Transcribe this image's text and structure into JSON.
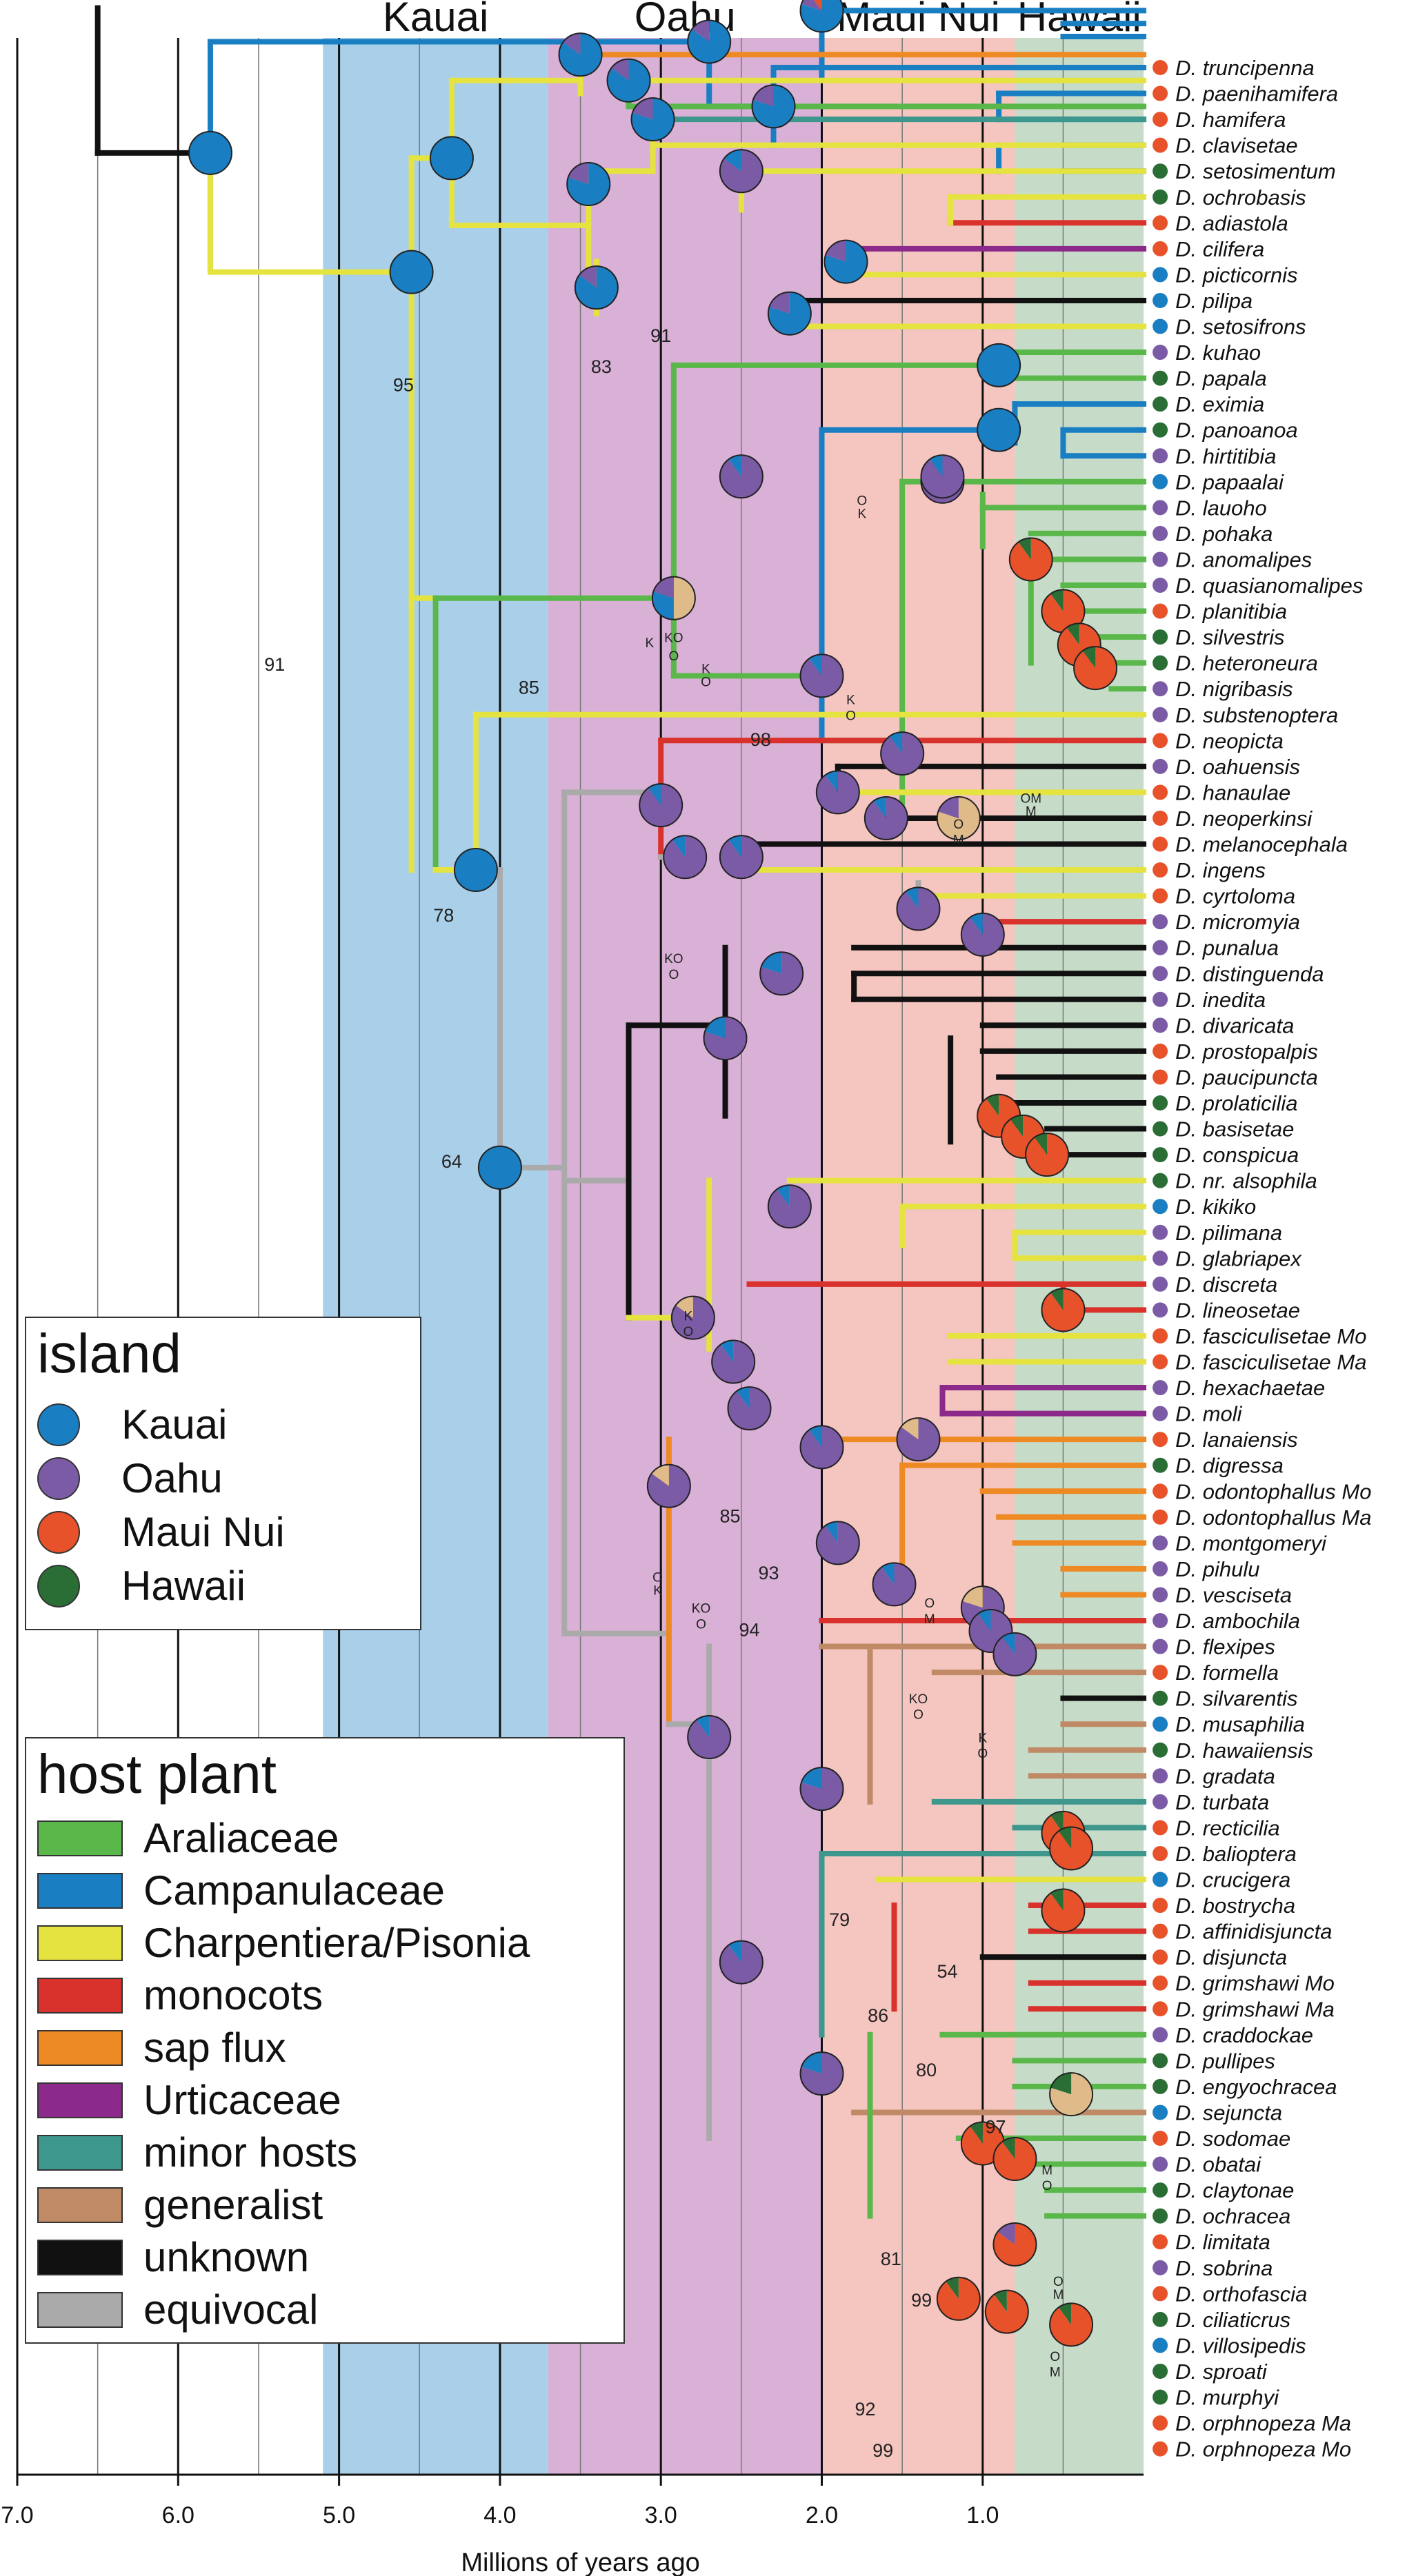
{
  "regions": [
    {
      "label": "Kauai",
      "color": "#a9d0e8",
      "start_ma": 5.1,
      "end_ma": 3.7
    },
    {
      "label": "Oahu",
      "color": "#d9b0d6",
      "start_ma": 3.7,
      "end_ma": 2.0
    },
    {
      "label": "Maui Nui",
      "color": "#f5c5c0",
      "start_ma": 2.0,
      "end_ma": 0.8
    },
    {
      "label": "Hawaii",
      "color": "#c6dcc9",
      "start_ma": 0.8,
      "end_ma": 0.0
    }
  ],
  "axis": {
    "label": "Millions of years ago",
    "ticks": [
      "7.0",
      "6.0",
      "5.0",
      "4.0",
      "3.0",
      "2.0",
      "1.0"
    ],
    "tick_values": [
      7,
      6,
      5,
      4,
      3,
      2,
      1
    ],
    "range": [
      7.0,
      0.0
    ]
  },
  "taxa": [
    {
      "name": "D. truncipenna",
      "island": "Maui Nui"
    },
    {
      "name": "D. paenihamifera",
      "island": "Maui Nui"
    },
    {
      "name": "D. hamifera",
      "island": "Maui Nui"
    },
    {
      "name": "D. clavisetae",
      "island": "Maui Nui"
    },
    {
      "name": "D. setosimentum",
      "island": "Hawaii"
    },
    {
      "name": "D. ochrobasis",
      "island": "Hawaii"
    },
    {
      "name": "D. adiastola",
      "island": "Maui Nui"
    },
    {
      "name": "D. cilifera",
      "island": "Maui Nui"
    },
    {
      "name": "D. picticornis",
      "island": "Kauai"
    },
    {
      "name": "D. pilipa",
      "island": "Kauai"
    },
    {
      "name": "D. setosifrons",
      "island": "Kauai"
    },
    {
      "name": "D. kuhao",
      "island": "Oahu"
    },
    {
      "name": "D. papala",
      "island": "Hawaii"
    },
    {
      "name": "D. eximia",
      "island": "Hawaii"
    },
    {
      "name": "D. panoanoa",
      "island": "Hawaii"
    },
    {
      "name": "D. hirtitibia",
      "island": "Oahu"
    },
    {
      "name": "D. papaalai",
      "island": "Kauai"
    },
    {
      "name": "D. lauoho",
      "island": "Oahu"
    },
    {
      "name": "D. pohaka",
      "island": "Oahu"
    },
    {
      "name": "D. anomalipes",
      "island": "Oahu"
    },
    {
      "name": "D. quasianomalipes",
      "island": "Oahu"
    },
    {
      "name": "D. planitibia",
      "island": "Maui Nui"
    },
    {
      "name": "D. silvestris",
      "island": "Hawaii"
    },
    {
      "name": "D. heteroneura",
      "island": "Hawaii"
    },
    {
      "name": "D. nigribasis",
      "island": "Oahu"
    },
    {
      "name": "D. substenoptera",
      "island": "Oahu"
    },
    {
      "name": "D. neopicta",
      "island": "Maui Nui"
    },
    {
      "name": "D. oahuensis",
      "island": "Oahu"
    },
    {
      "name": "D. hanaulae",
      "island": "Maui Nui"
    },
    {
      "name": "D. neoperkinsi",
      "island": "Maui Nui"
    },
    {
      "name": "D. melanocephala",
      "island": "Maui Nui"
    },
    {
      "name": "D. ingens",
      "island": "Maui Nui"
    },
    {
      "name": "D. cyrtoloma",
      "island": "Maui Nui"
    },
    {
      "name": "D. micromyia",
      "island": "Oahu"
    },
    {
      "name": "D. punalua",
      "island": "Oahu"
    },
    {
      "name": "D. distinguenda",
      "island": "Oahu"
    },
    {
      "name": "D. inedita",
      "island": "Oahu"
    },
    {
      "name": "D. divaricata",
      "island": "Oahu"
    },
    {
      "name": "D. prostopalpis",
      "island": "Maui Nui"
    },
    {
      "name": "D. paucipuncta",
      "island": "Maui Nui"
    },
    {
      "name": "D. prolaticilia",
      "island": "Hawaii"
    },
    {
      "name": "D. basisetae",
      "island": "Hawaii"
    },
    {
      "name": "D. conspicua",
      "island": "Hawaii"
    },
    {
      "name": "D. nr. alsophila",
      "island": "Hawaii"
    },
    {
      "name": "D. kikiko",
      "island": "Kauai"
    },
    {
      "name": "D. pilimana",
      "island": "Oahu"
    },
    {
      "name": "D. glabriapex",
      "island": "Oahu"
    },
    {
      "name": "D. discreta",
      "island": "Oahu"
    },
    {
      "name": "D. lineosetae",
      "island": "Oahu"
    },
    {
      "name": "D. fasciculisetae Mo",
      "island": "Maui Nui"
    },
    {
      "name": "D. fasciculisetae Ma",
      "island": "Maui Nui"
    },
    {
      "name": "D. hexachaetae",
      "island": "Oahu"
    },
    {
      "name": "D. moli",
      "island": "Oahu"
    },
    {
      "name": "D. lanaiensis",
      "island": "Maui Nui"
    },
    {
      "name": "D. digressa",
      "island": "Hawaii"
    },
    {
      "name": "D. odontophallus Mo",
      "island": "Maui Nui"
    },
    {
      "name": "D. odontophallus Ma",
      "island": "Maui Nui"
    },
    {
      "name": "D. montgomeryi",
      "island": "Oahu"
    },
    {
      "name": "D. pihulu",
      "island": "Oahu"
    },
    {
      "name": "D. vesciseta",
      "island": "Oahu"
    },
    {
      "name": "D. ambochila",
      "island": "Oahu"
    },
    {
      "name": "D. flexipes",
      "island": "Oahu"
    },
    {
      "name": "D. formella",
      "island": "Maui Nui"
    },
    {
      "name": "D. silvarentis",
      "island": "Hawaii"
    },
    {
      "name": "D. musaphilia",
      "island": "Kauai"
    },
    {
      "name": "D. hawaiiensis",
      "island": "Hawaii"
    },
    {
      "name": "D. gradata",
      "island": "Oahu"
    },
    {
      "name": "D. turbata",
      "island": "Oahu"
    },
    {
      "name": "D. recticilia",
      "island": "Maui Nui"
    },
    {
      "name": "D. balioptera",
      "island": "Maui Nui"
    },
    {
      "name": "D. crucigera",
      "island": "Kauai"
    },
    {
      "name": "D. bostrycha",
      "island": "Maui Nui"
    },
    {
      "name": "D. affinidisjuncta",
      "island": "Maui Nui"
    },
    {
      "name": "D. disjuncta",
      "island": "Maui Nui"
    },
    {
      "name": "D. grimshawi Mo",
      "island": "Maui Nui"
    },
    {
      "name": "D. grimshawi Ma",
      "island": "Maui Nui"
    },
    {
      "name": "D. craddockae",
      "island": "Oahu"
    },
    {
      "name": "D. pullipes",
      "island": "Hawaii"
    },
    {
      "name": "D. engyochracea",
      "island": "Hawaii"
    },
    {
      "name": "D. sejuncta",
      "island": "Kauai"
    },
    {
      "name": "D. sodomae",
      "island": "Maui Nui"
    },
    {
      "name": "D. obatai",
      "island": "Oahu"
    },
    {
      "name": "D. claytonae",
      "island": "Hawaii"
    },
    {
      "name": "D. ochracea",
      "island": "Hawaii"
    },
    {
      "name": "D. limitata",
      "island": "Maui Nui"
    },
    {
      "name": "D. sobrina",
      "island": "Oahu"
    },
    {
      "name": "D. orthofascia",
      "island": "Maui Nui"
    },
    {
      "name": "D. ciliaticrus",
      "island": "Hawaii"
    },
    {
      "name": "D. villosipedis",
      "island": "Kauai"
    },
    {
      "name": "D. sproati",
      "island": "Hawaii"
    },
    {
      "name": "D. murphyi",
      "island": "Hawaii"
    },
    {
      "name": "D. orphnopeza Ma",
      "island": "Maui Nui"
    },
    {
      "name": "D. orphnopeza Mo",
      "island": "Maui Nui"
    }
  ],
  "support_values": [
    {
      "text": "91",
      "age": 3.0,
      "row": 10.6
    },
    {
      "text": "83",
      "age": 3.37,
      "row": 11.8
    },
    {
      "text": "95",
      "age": 4.6,
      "row": 12.5
    },
    {
      "text": "91",
      "age": 5.4,
      "row": 23.3
    },
    {
      "text": "85",
      "age": 3.82,
      "row": 24.2
    },
    {
      "text": "98",
      "age": 2.38,
      "row": 26.2
    },
    {
      "text": "78",
      "age": 4.35,
      "row": 33.0
    },
    {
      "text": "64",
      "age": 4.3,
      "row": 42.5
    },
    {
      "text": "85",
      "age": 2.57,
      "row": 56.2
    },
    {
      "text": "93",
      "age": 2.33,
      "row": 58.4
    },
    {
      "text": "94",
      "age": 2.45,
      "row": 60.6
    },
    {
      "text": "79",
      "age": 1.89,
      "row": 71.8
    },
    {
      "text": "54",
      "age": 1.22,
      "row": 73.8
    },
    {
      "text": "86",
      "age": 1.65,
      "row": 75.5
    },
    {
      "text": "80",
      "age": 1.35,
      "row": 77.6
    },
    {
      "text": "97",
      "age": 0.92,
      "row": 79.8
    },
    {
      "text": "81",
      "age": 1.57,
      "row": 84.9
    },
    {
      "text": "99",
      "age": 1.38,
      "row": 86.5
    },
    {
      "text": "92",
      "age": 1.73,
      "row": 90.7
    },
    {
      "text": "99",
      "age": 1.62,
      "row": 92.3
    }
  ],
  "node_annotations": [
    {
      "text": "K",
      "age": 1.75,
      "row": 17.4
    },
    {
      "text": "O",
      "age": 1.75,
      "row": 16.9
    },
    {
      "text": "K",
      "age": 3.07,
      "row": 22.4
    },
    {
      "text": "KO",
      "age": 2.92,
      "row": 22.2
    },
    {
      "text": "O",
      "age": 2.92,
      "row": 22.9
    },
    {
      "text": "K",
      "age": 2.72,
      "row": 23.4
    },
    {
      "text": "O",
      "age": 2.72,
      "row": 23.9
    },
    {
      "text": "K",
      "age": 1.82,
      "row": 24.6
    },
    {
      "text": "O",
      "age": 1.82,
      "row": 25.2
    },
    {
      "text": "OM",
      "age": 0.7,
      "row": 28.4
    },
    {
      "text": "M",
      "age": 0.7,
      "row": 28.9
    },
    {
      "text": "O",
      "age": 1.15,
      "row": 29.4
    },
    {
      "text": "M",
      "age": 1.15,
      "row": 30.0
    },
    {
      "text": "KO",
      "age": 2.92,
      "row": 34.6
    },
    {
      "text": "O",
      "age": 2.92,
      "row": 35.2
    },
    {
      "text": "K",
      "age": 2.83,
      "row": 48.4
    },
    {
      "text": "O",
      "age": 2.83,
      "row": 49.0
    },
    {
      "text": "O",
      "age": 3.02,
      "row": 58.5
    },
    {
      "text": "K",
      "age": 3.02,
      "row": 59.0
    },
    {
      "text": "KO",
      "age": 2.75,
      "row": 59.7
    },
    {
      "text": "O",
      "age": 2.75,
      "row": 60.3
    },
    {
      "text": "O",
      "age": 1.33,
      "row": 59.5
    },
    {
      "text": "M",
      "age": 1.33,
      "row": 60.1
    },
    {
      "text": "KO",
      "age": 1.4,
      "row": 63.2
    },
    {
      "text": "O",
      "age": 1.4,
      "row": 63.8
    },
    {
      "text": "K",
      "age": 1.0,
      "row": 64.7
    },
    {
      "text": "O",
      "age": 1.0,
      "row": 65.3
    },
    {
      "text": "M",
      "age": 0.6,
      "row": 81.4
    },
    {
      "text": "O",
      "age": 0.6,
      "row": 82.0
    },
    {
      "text": "O",
      "age": 0.53,
      "row": 85.7
    },
    {
      "text": "M",
      "age": 0.53,
      "row": 86.2
    },
    {
      "text": "O",
      "age": 0.55,
      "row": 88.6
    },
    {
      "text": "M",
      "age": 0.55,
      "row": 89.2
    }
  ],
  "legend_island": {
    "title": "island",
    "items": [
      {
        "label": "Kauai",
        "color": "#1a7fc2"
      },
      {
        "label": "Oahu",
        "color": "#7b5aa6"
      },
      {
        "label": "Maui Nui",
        "color": "#e8522a"
      },
      {
        "label": "Hawaii",
        "color": "#2a6e36"
      }
    ]
  },
  "legend_host": {
    "title": "host plant",
    "items": [
      {
        "label": "Araliaceae",
        "color": "#5ab84b"
      },
      {
        "label": "Campanulaceae",
        "color": "#1a7fc2"
      },
      {
        "label": "Charpentiera/Pisonia",
        "color": "#e5e340"
      },
      {
        "label": "monocots",
        "color": "#d9312b"
      },
      {
        "label": "sap flux",
        "color": "#ee8a23"
      },
      {
        "label": "Urticaceae",
        "color": "#8b2a8a"
      },
      {
        "label": "minor hosts",
        "color": "#3e978d"
      },
      {
        "label": "generalist",
        "color": "#c08a66"
      },
      {
        "label": "unknown",
        "color": "#111111"
      },
      {
        "label": "equivocal",
        "color": "#aaaaaa"
      }
    ]
  },
  "island_colors": {
    "Kauai": "#1a7fc2",
    "Oahu": "#7b5aa6",
    "Maui Nui": "#e8522a",
    "Hawaii": "#2a6e36",
    "Mo": "#e0bb8a"
  }
}
